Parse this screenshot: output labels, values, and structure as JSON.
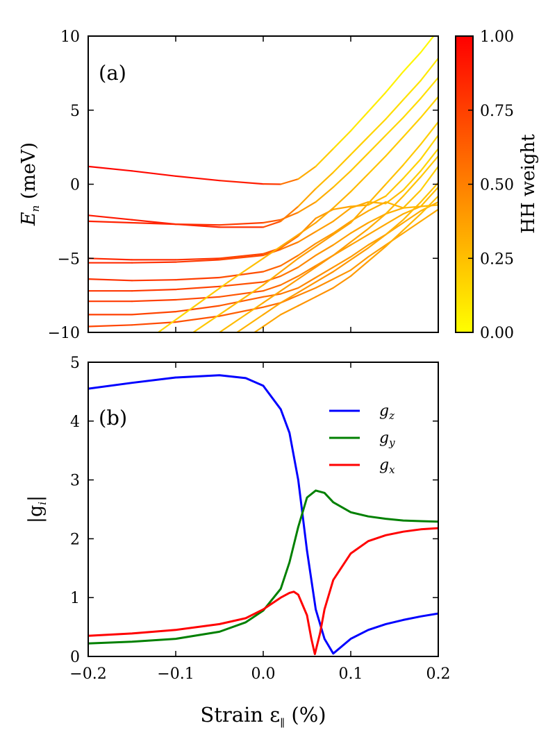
{
  "colors": {
    "hh_low": "#ffff00",
    "hh_high": "#ff0000",
    "gz": "#0000ff",
    "gy": "#008000",
    "gx": "#ff0000",
    "axes": "#000000",
    "background": "#ffffff"
  },
  "chart_data": [
    {
      "panel_label": "(a)",
      "type": "line",
      "ylabel_main": "E",
      "ylabel_sub": "n",
      "ylabel_unit": " (meV)",
      "xlim": [
        -0.2,
        0.2
      ],
      "ylim": [
        -10,
        10
      ],
      "xticks": [
        -0.2,
        -0.1,
        0.0,
        0.1,
        0.2
      ],
      "yticks": [
        -10,
        -5,
        0,
        5,
        10
      ],
      "ytick_labels": [
        "−10",
        "−5",
        "0",
        "5",
        "10"
      ],
      "colorbar": {
        "label": "HH weight",
        "range": [
          0,
          1
        ],
        "ticks": [
          "0.00",
          "0.25",
          "0.50",
          "0.75",
          "1.00"
        ]
      },
      "series": [
        {
          "name": "level-1",
          "x": [
            -0.2,
            -0.15,
            -0.1,
            -0.05,
            0.0,
            0.02,
            0.04,
            0.06,
            0.08,
            0.1,
            0.12,
            0.14,
            0.16,
            0.18,
            0.2
          ],
          "y": [
            1.2,
            0.9,
            0.55,
            0.25,
            0.02,
            0.0,
            0.35,
            1.2,
            2.4,
            3.6,
            4.9,
            6.2,
            7.6,
            8.9,
            10.4
          ],
          "hh": [
            0.98,
            0.97,
            0.96,
            0.93,
            0.85,
            0.7,
            0.4,
            0.25,
            0.15,
            0.1,
            0.08,
            0.06,
            0.04,
            0.03,
            0.02
          ]
        },
        {
          "name": "level-2",
          "x": [
            -0.2,
            -0.15,
            -0.1,
            -0.05,
            0.0,
            0.02,
            0.04,
            0.06,
            0.08,
            0.1,
            0.12,
            0.14,
            0.16,
            0.18,
            0.2
          ],
          "y": [
            -2.1,
            -2.4,
            -2.7,
            -2.9,
            -2.9,
            -2.5,
            -1.5,
            -0.3,
            0.8,
            2.0,
            3.2,
            4.4,
            5.7,
            7.0,
            8.5
          ],
          "hh": [
            0.9,
            0.9,
            0.88,
            0.85,
            0.78,
            0.6,
            0.4,
            0.3,
            0.25,
            0.2,
            0.18,
            0.15,
            0.12,
            0.1,
            0.08
          ]
        },
        {
          "name": "level-3",
          "x": [
            -0.2,
            -0.15,
            -0.1,
            -0.05,
            0.0,
            0.02,
            0.04,
            0.06,
            0.08,
            0.1,
            0.12,
            0.14,
            0.16,
            0.18,
            0.2
          ],
          "y": [
            -2.5,
            -2.6,
            -2.7,
            -2.75,
            -2.6,
            -2.4,
            -1.9,
            -1.2,
            -0.2,
            0.9,
            2.1,
            3.3,
            4.5,
            5.8,
            7.2
          ],
          "hh": [
            0.88,
            0.86,
            0.84,
            0.8,
            0.72,
            0.6,
            0.45,
            0.35,
            0.28,
            0.22,
            0.2,
            0.18,
            0.15,
            0.13,
            0.12
          ]
        },
        {
          "name": "level-4",
          "x": [
            -0.2,
            -0.15,
            -0.1,
            -0.05,
            0.0,
            0.02,
            0.04,
            0.06,
            0.08,
            0.1,
            0.12,
            0.14,
            0.16,
            0.18,
            0.2
          ],
          "y": [
            -5.0,
            -5.1,
            -5.1,
            -5.0,
            -4.7,
            -4.3,
            -3.5,
            -2.3,
            -1.7,
            -1.5,
            -1.4,
            -0.8,
            0.4,
            1.7,
            3.3
          ],
          "hh": [
            0.85,
            0.84,
            0.82,
            0.78,
            0.7,
            0.6,
            0.5,
            0.4,
            0.38,
            0.35,
            0.3,
            0.25,
            0.2,
            0.17,
            0.15
          ]
        },
        {
          "name": "level-5",
          "x": [
            -0.2,
            -0.15,
            -0.1,
            -0.05,
            0.0,
            0.02,
            0.04,
            0.06,
            0.08,
            0.1,
            0.12,
            0.14,
            0.16,
            0.18,
            0.2
          ],
          "y": [
            -5.3,
            -5.3,
            -5.25,
            -5.1,
            -4.8,
            -4.4,
            -3.9,
            -3.2,
            -2.5,
            -1.6,
            -1.2,
            -1.3,
            -0.4,
            0.9,
            2.4
          ],
          "hh": [
            0.84,
            0.83,
            0.8,
            0.76,
            0.68,
            0.58,
            0.48,
            0.4,
            0.36,
            0.34,
            0.33,
            0.3,
            0.22,
            0.18,
            0.16
          ]
        },
        {
          "name": "level-6",
          "x": [
            -0.2,
            -0.15,
            -0.1,
            -0.05,
            0.0,
            0.02,
            0.04,
            0.06,
            0.08,
            0.1,
            0.12,
            0.14,
            0.16,
            0.18,
            0.2
          ],
          "y": [
            -6.4,
            -6.5,
            -6.45,
            -6.3,
            -5.9,
            -5.5,
            -4.8,
            -4.0,
            -3.3,
            -2.5,
            -1.8,
            -1.2,
            -1.6,
            -0.4,
            1.2
          ],
          "hh": [
            0.82,
            0.8,
            0.78,
            0.74,
            0.66,
            0.58,
            0.5,
            0.42,
            0.38,
            0.36,
            0.34,
            0.3,
            0.28,
            0.2,
            0.18
          ]
        },
        {
          "name": "level-7",
          "x": [
            -0.2,
            -0.15,
            -0.1,
            -0.05,
            0.0,
            0.02,
            0.04,
            0.06,
            0.08,
            0.1,
            0.12,
            0.14,
            0.16,
            0.18,
            0.2
          ],
          "y": [
            -7.2,
            -7.2,
            -7.1,
            -6.9,
            -6.6,
            -6.2,
            -5.6,
            -4.8,
            -4.1,
            -3.3,
            -2.6,
            -2.0,
            -1.6,
            -1.5,
            -0.2
          ],
          "hh": [
            0.8,
            0.79,
            0.77,
            0.72,
            0.65,
            0.57,
            0.5,
            0.43,
            0.39,
            0.37,
            0.35,
            0.32,
            0.3,
            0.28,
            0.22
          ]
        },
        {
          "name": "level-8",
          "x": [
            -0.2,
            -0.15,
            -0.1,
            -0.05,
            0.0,
            0.02,
            0.04,
            0.06,
            0.08,
            0.1,
            0.12,
            0.14,
            0.16,
            0.18,
            0.2
          ],
          "y": [
            -7.9,
            -7.9,
            -7.8,
            -7.6,
            -7.2,
            -6.8,
            -6.2,
            -5.5,
            -4.8,
            -4.1,
            -3.4,
            -2.7,
            -2.0,
            -1.5,
            -1.4
          ],
          "hh": [
            0.78,
            0.77,
            0.75,
            0.7,
            0.63,
            0.56,
            0.5,
            0.44,
            0.4,
            0.38,
            0.36,
            0.34,
            0.32,
            0.3,
            0.28
          ]
        },
        {
          "name": "level-9",
          "x": [
            -0.2,
            -0.15,
            -0.1,
            -0.05,
            0.0,
            0.02,
            0.04,
            0.06,
            0.08,
            0.1,
            0.12,
            0.14,
            0.16,
            0.18,
            0.2
          ],
          "y": [
            -8.8,
            -8.8,
            -8.6,
            -8.2,
            -7.6,
            -7.4,
            -7.0,
            -6.3,
            -5.6,
            -4.9,
            -4.1,
            -3.4,
            -2.6,
            -1.8,
            -1.2
          ],
          "hh": [
            0.76,
            0.75,
            0.72,
            0.68,
            0.6,
            0.55,
            0.5,
            0.45,
            0.42,
            0.4,
            0.38,
            0.36,
            0.34,
            0.32,
            0.3
          ]
        },
        {
          "name": "level-10",
          "x": [
            -0.2,
            -0.15,
            -0.1,
            -0.05,
            0.0,
            0.02,
            0.04,
            0.06,
            0.08,
            0.1,
            0.12,
            0.14,
            0.16,
            0.18,
            0.2
          ],
          "y": [
            -9.6,
            -9.5,
            -9.3,
            -8.9,
            -8.3,
            -8.0,
            -7.5,
            -7.0,
            -6.4,
            -5.8,
            -4.9,
            -4.1,
            -3.3,
            -2.5,
            -1.7
          ],
          "hh": [
            0.74,
            0.73,
            0.7,
            0.66,
            0.6,
            0.55,
            0.5,
            0.46,
            0.43,
            0.41,
            0.39,
            0.37,
            0.35,
            0.33,
            0.32
          ]
        },
        {
          "name": "level-11",
          "x": [
            -0.12,
            -0.08,
            -0.04,
            0.0,
            0.02,
            0.04,
            0.06,
            0.08,
            0.1,
            0.12,
            0.14,
            0.16,
            0.18,
            0.2
          ],
          "y": [
            -10.0,
            -8.3,
            -6.6,
            -5.0,
            -4.2,
            -3.4,
            -2.6,
            -1.6,
            -0.5,
            0.7,
            1.9,
            3.2,
            4.5,
            5.9
          ],
          "hh": [
            0.15,
            0.18,
            0.22,
            0.28,
            0.32,
            0.35,
            0.36,
            0.32,
            0.28,
            0.25,
            0.22,
            0.2,
            0.18,
            0.16
          ]
        },
        {
          "name": "level-12",
          "x": [
            -0.08,
            -0.04,
            0.0,
            0.02,
            0.04,
            0.06,
            0.08,
            0.1,
            0.12,
            0.14,
            0.16,
            0.18,
            0.2
          ],
          "y": [
            -10.0,
            -8.4,
            -6.8,
            -5.9,
            -5.0,
            -4.2,
            -3.4,
            -2.6,
            -1.3,
            0.0,
            1.3,
            2.7,
            4.2
          ],
          "hh": [
            0.2,
            0.24,
            0.3,
            0.34,
            0.38,
            0.4,
            0.38,
            0.35,
            0.3,
            0.26,
            0.22,
            0.2,
            0.18
          ]
        },
        {
          "name": "level-13",
          "x": [
            -0.05,
            -0.02,
            0.0,
            0.02,
            0.04,
            0.06,
            0.08,
            0.1,
            0.12,
            0.14,
            0.16,
            0.18,
            0.2
          ],
          "y": [
            -10.0,
            -8.8,
            -8.0,
            -7.2,
            -6.4,
            -5.6,
            -4.8,
            -3.9,
            -3.0,
            -2.0,
            -0.8,
            0.5,
            1.9
          ],
          "hh": [
            0.25,
            0.28,
            0.32,
            0.36,
            0.4,
            0.42,
            0.4,
            0.38,
            0.34,
            0.3,
            0.26,
            0.22,
            0.2
          ]
        },
        {
          "name": "level-14",
          "x": [
            -0.03,
            0.0,
            0.02,
            0.04,
            0.06,
            0.08,
            0.1,
            0.12,
            0.14,
            0.16,
            0.18,
            0.2
          ],
          "y": [
            -10.0,
            -8.8,
            -8.0,
            -7.3,
            -6.6,
            -5.9,
            -5.1,
            -4.3,
            -3.4,
            -2.4,
            -1.2,
            0.1
          ],
          "hh": [
            0.28,
            0.32,
            0.36,
            0.4,
            0.43,
            0.42,
            0.4,
            0.37,
            0.33,
            0.29,
            0.25,
            0.22
          ]
        },
        {
          "name": "level-15",
          "x": [
            -0.01,
            0.0,
            0.02,
            0.04,
            0.06,
            0.08,
            0.1,
            0.12,
            0.14,
            0.16,
            0.18,
            0.2
          ],
          "y": [
            -10.0,
            -9.6,
            -8.8,
            -8.2,
            -7.6,
            -7.0,
            -6.2,
            -5.2,
            -4.2,
            -3.1,
            -2.0,
            -0.8
          ],
          "hh": [
            0.3,
            0.33,
            0.37,
            0.41,
            0.44,
            0.43,
            0.41,
            0.38,
            0.34,
            0.3,
            0.26,
            0.24
          ]
        }
      ]
    },
    {
      "panel_label": "(b)",
      "type": "line",
      "ylabel_main": "|g",
      "ylabel_sub": "i",
      "ylabel_end": "|",
      "xlabel_main": "Strain ε",
      "xlabel_sub": "∥",
      "xlabel_unit": " (%)",
      "xlim": [
        -0.2,
        0.2
      ],
      "ylim": [
        0,
        5
      ],
      "xticks": [
        -0.2,
        -0.1,
        0.0,
        0.1,
        0.2
      ],
      "xtick_labels": [
        "−0.2",
        "−0.1",
        "0.0",
        "0.1",
        "0.2"
      ],
      "yticks": [
        0,
        1,
        2,
        3,
        4,
        5
      ],
      "ytick_labels": [
        "0",
        "1",
        "2",
        "3",
        "4",
        "5"
      ],
      "legend": {
        "position": "upper-right"
      },
      "series": [
        {
          "name": "gz",
          "legend_main": "g",
          "legend_sub": "z",
          "color_key": "gz",
          "x": [
            -0.2,
            -0.15,
            -0.1,
            -0.05,
            -0.02,
            0.0,
            0.02,
            0.03,
            0.04,
            0.05,
            0.06,
            0.07,
            0.08,
            0.1,
            0.12,
            0.14,
            0.16,
            0.18,
            0.2
          ],
          "y": [
            4.55,
            4.65,
            4.74,
            4.78,
            4.73,
            4.6,
            4.2,
            3.8,
            3.0,
            1.8,
            0.8,
            0.3,
            0.05,
            0.3,
            0.45,
            0.55,
            0.62,
            0.68,
            0.73
          ]
        },
        {
          "name": "gy",
          "legend_main": "g",
          "legend_sub": "y",
          "color_key": "gy",
          "x": [
            -0.2,
            -0.15,
            -0.1,
            -0.05,
            -0.02,
            0.0,
            0.02,
            0.03,
            0.04,
            0.05,
            0.06,
            0.07,
            0.08,
            0.1,
            0.12,
            0.14,
            0.16,
            0.18,
            0.2
          ],
          "y": [
            0.22,
            0.25,
            0.3,
            0.42,
            0.58,
            0.78,
            1.15,
            1.6,
            2.2,
            2.7,
            2.82,
            2.78,
            2.62,
            2.45,
            2.38,
            2.34,
            2.31,
            2.3,
            2.29
          ]
        },
        {
          "name": "gx",
          "legend_main": "g",
          "legend_sub": "x",
          "color_key": "gx",
          "x": [
            -0.2,
            -0.15,
            -0.1,
            -0.05,
            -0.02,
            0.0,
            0.02,
            0.03,
            0.035,
            0.04,
            0.05,
            0.055,
            0.059,
            0.065,
            0.07,
            0.08,
            0.1,
            0.12,
            0.14,
            0.16,
            0.18,
            0.2
          ],
          "y": [
            0.35,
            0.39,
            0.45,
            0.55,
            0.65,
            0.8,
            1.0,
            1.08,
            1.1,
            1.05,
            0.7,
            0.3,
            0.04,
            0.4,
            0.8,
            1.3,
            1.75,
            1.96,
            2.06,
            2.12,
            2.16,
            2.18
          ]
        }
      ]
    }
  ]
}
